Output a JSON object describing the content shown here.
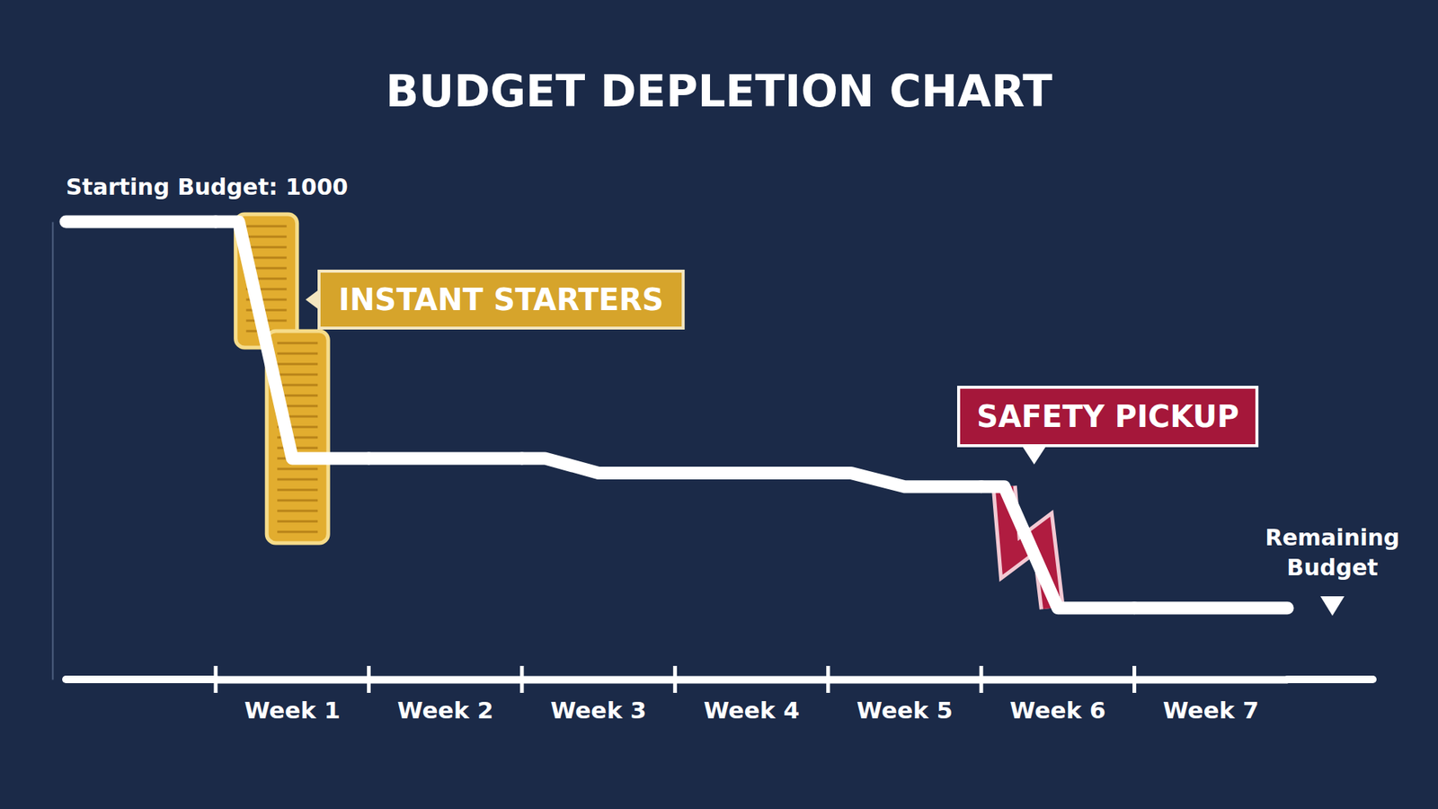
{
  "chart_data": {
    "type": "line",
    "title": "BUDGET DEPLETION CHART",
    "annotations": [
      "Starting Budget: 1000",
      "INSTANT STARTERS",
      "SAFETY PICKUP",
      "Remaining Budget"
    ],
    "start_value": 1000,
    "categories": [
      "Week 1",
      "Week 2",
      "Week 3",
      "Week 4",
      "Week 5",
      "Week 6",
      "Week 7"
    ],
    "values": [
      483,
      483,
      451,
      451,
      421,
      156,
      156
    ],
    "ylim": [
      0,
      1000
    ],
    "color": "#ffffff",
    "tick_labels": "x"
  }
}
